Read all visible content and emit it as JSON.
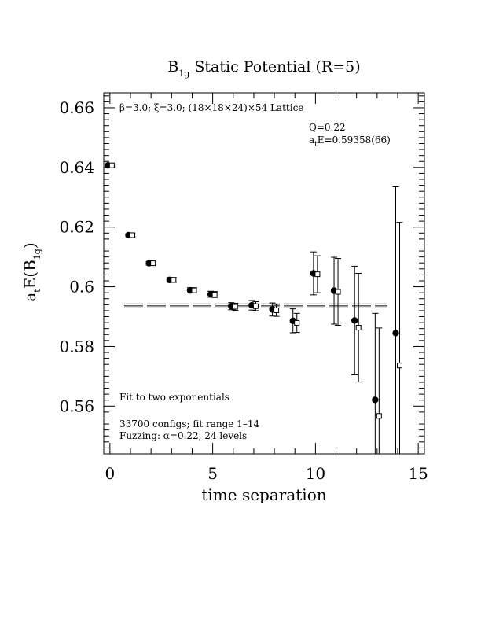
{
  "chart_data": {
    "type": "scatter",
    "title_main": "B",
    "title_sub": "1g",
    "title_rest": " Static Potential (R=5)",
    "xlabel": "time separation",
    "ylabel_main": "a",
    "ylabel_sub1": "t",
    "ylabel_mid": "E(B",
    "ylabel_sub2": "1g",
    "ylabel_end": ")",
    "xlim": [
      -0.3,
      15.3
    ],
    "ylim": [
      0.544,
      0.665
    ],
    "x_ticks": [
      0,
      5,
      10,
      15
    ],
    "x_tick_labels": [
      "0",
      "5",
      "10",
      "15"
    ],
    "y_ticks": [
      0.56,
      0.58,
      0.6,
      0.62,
      0.64,
      0.66
    ],
    "y_tick_labels": [
      "0.56",
      "0.58",
      "0.6",
      "0.62",
      "0.64",
      "0.66"
    ],
    "annotations": {
      "lattice": "β=3.0; ξ=3.0; (18×18×24)×54 Lattice",
      "q": "Q=0.22",
      "ate_main": "a",
      "ate_sub": "t",
      "ate_rest": "E=0.59358(66)",
      "fit_desc": "Fit to two exponentials",
      "configs": "33700 configs; fit range 1–14",
      "fuzzing": "Fuzzing: α=0.22, 24 levels"
    },
    "fit": {
      "value": 0.59358,
      "error": 0.00066,
      "x_range": [
        1,
        14
      ]
    },
    "series": [
      {
        "marker": "filled-circle",
        "x": [
          0,
          1,
          2,
          3,
          4,
          5,
          6,
          7,
          8,
          9,
          10,
          11,
          12,
          13,
          14
        ],
        "y": [
          0.6407,
          0.6173,
          0.6079,
          0.6023,
          0.5988,
          0.5975,
          0.5935,
          0.5938,
          0.5924,
          0.5886,
          0.6045,
          0.5987,
          0.5887,
          0.5621,
          0.5845
        ],
        "err": [
          0.0004,
          0.0005,
          0.0006,
          0.0008,
          0.0009,
          0.001,
          0.0012,
          0.0016,
          0.0022,
          0.004,
          0.0072,
          0.0112,
          0.0182,
          0.029,
          0.049
        ]
      },
      {
        "marker": "open-square",
        "x": [
          0,
          1,
          2,
          3,
          4,
          5,
          6,
          7,
          8,
          9,
          10,
          11,
          12,
          13,
          14
        ],
        "y": [
          0.6407,
          0.6173,
          0.6079,
          0.6023,
          0.5988,
          0.5974,
          0.5933,
          0.5935,
          0.5921,
          0.5879,
          0.6042,
          0.5983,
          0.5863,
          0.5567,
          0.5736
        ],
        "err": [
          0.0004,
          0.0005,
          0.0006,
          0.0008,
          0.0009,
          0.001,
          0.0012,
          0.0015,
          0.002,
          0.0032,
          0.0062,
          0.0112,
          0.0182,
          0.0295,
          0.048
        ]
      }
    ]
  }
}
